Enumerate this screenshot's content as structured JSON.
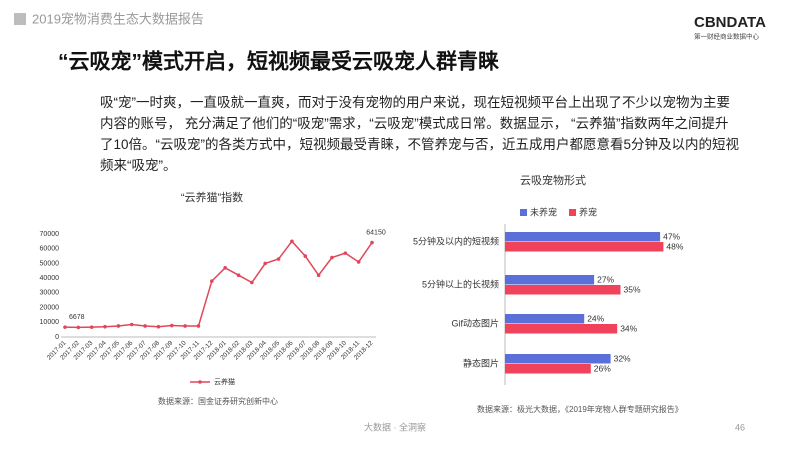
{
  "header": {
    "report": "2019宠物消费生态大数据报告",
    "logo": "CBNDATA",
    "logo_sub": "第一财经商业数据中心"
  },
  "title": "“云吸宠”模式开启，短视频最受云吸宠人群青睐",
  "paragraph": "吸“宠”一时爽，一直吸就一直爽，而对于没有宠物的用户来说，现在短视频平台上出现了不少以宠物为主要内容的账号， 充分满足了他们的“吸宠”需求，“云吸宠”模式成日常。数据显示， “云养猫”指数两年之间提升了10倍。“云吸宠”的各类方式中，短视频最受青睐，不管养宠与否，近五成用户都愿意看5分钟及以内的短视频来“吸宠”。",
  "footer": {
    "center": "大数据 · 全洞察",
    "page": "46"
  },
  "chart_data": [
    {
      "type": "line",
      "title": "“云养猫”指数",
      "source": "数据来源：国金证券研究创新中心",
      "categories": [
        "2017-01",
        "2017-02",
        "2017-03",
        "2017-04",
        "2017-05",
        "2017-06",
        "2017-07",
        "2017-08",
        "2017-09",
        "2017-10",
        "2017-11",
        "2017-12",
        "2018-01",
        "2018-02",
        "2018-03",
        "2018-04",
        "2018-05",
        "2018-06",
        "2018-07",
        "2018-08",
        "2018-09",
        "2018-10",
        "2018-11",
        "2018-12"
      ],
      "series": [
        {
          "name": "云养猫",
          "color": "#e0475a",
          "values": [
            6678,
            6500,
            6700,
            7000,
            7500,
            8500,
            7500,
            7000,
            7800,
            7500,
            7500,
            38000,
            47000,
            42000,
            37000,
            50000,
            53000,
            65000,
            55000,
            42000,
            54000,
            57000,
            51000,
            64150
          ],
          "value_labels": [
            "6678",
            null,
            null,
            null,
            null,
            null,
            null,
            null,
            null,
            null,
            null,
            null,
            null,
            null,
            null,
            null,
            null,
            null,
            null,
            null,
            null,
            null,
            null,
            "64150"
          ]
        }
      ],
      "ylim": [
        0,
        70000
      ],
      "yticks": [
        0,
        10000,
        20000,
        30000,
        40000,
        50000,
        60000,
        70000
      ],
      "grid": false,
      "legend": "bottom"
    },
    {
      "type": "hbar",
      "title": "云吸宠物形式",
      "source": "数据来源：极光大数据，《2019年宠物人群专题研究报告》",
      "categories": [
        "5分钟及以内的短视频",
        "5分钟以上的长视频",
        "Gif动态图片",
        "静态图片"
      ],
      "series": [
        {
          "name": "未养宠",
          "color": "#5a6fd8",
          "values": [
            47,
            27,
            24,
            32
          ],
          "value_labels": [
            "47%",
            "27%",
            "24%",
            "32%"
          ]
        },
        {
          "name": "养宠",
          "color": "#f0425a",
          "values": [
            48,
            35,
            34,
            26
          ],
          "value_labels": [
            "48%",
            "35%",
            "34%",
            "26%"
          ]
        }
      ],
      "legend": "top-left"
    }
  ]
}
